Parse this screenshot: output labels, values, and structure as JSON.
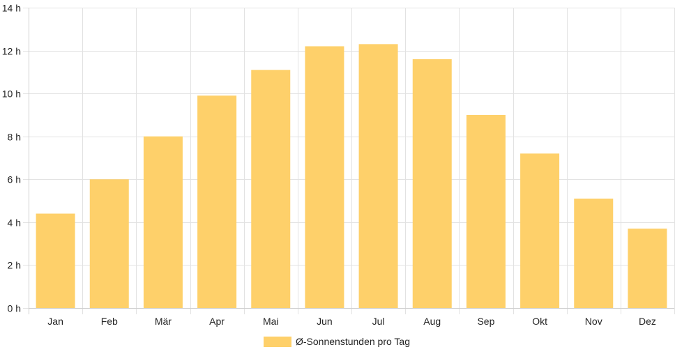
{
  "chart_data": {
    "type": "bar",
    "categories": [
      "Jan",
      "Feb",
      "Mär",
      "Apr",
      "Mai",
      "Jun",
      "Jul",
      "Aug",
      "Sep",
      "Okt",
      "Nov",
      "Dez"
    ],
    "series": [
      {
        "name": "Ø-Sonnenstunden pro Tag",
        "values": [
          4.4,
          6.0,
          8.0,
          9.9,
          11.1,
          12.2,
          12.3,
          11.6,
          9.0,
          7.2,
          5.1,
          3.7
        ],
        "color": "#fed06a"
      }
    ],
    "ylim": [
      0,
      14
    ],
    "yticks": [
      "0 h",
      "2 h",
      "4 h",
      "6 h",
      "8 h",
      "10 h",
      "12 h",
      "14 h"
    ],
    "grid": true,
    "legend_position": "bottom"
  }
}
